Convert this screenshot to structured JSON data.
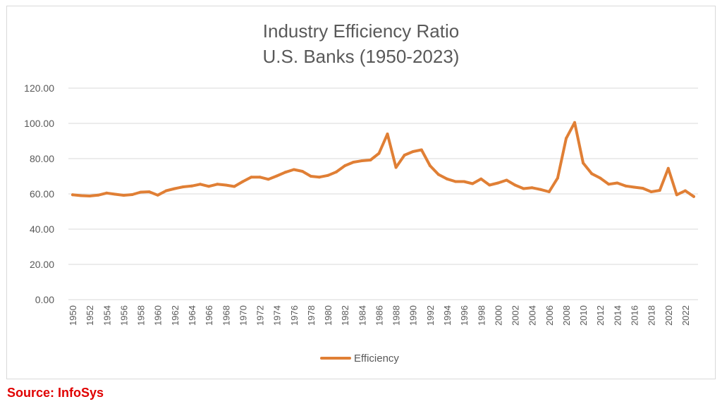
{
  "chart_data": {
    "type": "line",
    "title": "Industry Efficiency Ratio",
    "subtitle": "U.S. Banks (1950-2023)",
    "xlabel": "",
    "ylabel": "",
    "ylim": [
      0,
      120
    ],
    "y_ticks": [
      "0.00",
      "20.00",
      "40.00",
      "60.00",
      "80.00",
      "100.00",
      "120.00"
    ],
    "x_tick_labels": [
      "1950",
      "1952",
      "1954",
      "1956",
      "1958",
      "1960",
      "1962",
      "1964",
      "1966",
      "1968",
      "1970",
      "1972",
      "1974",
      "1976",
      "1978",
      "1980",
      "1982",
      "1984",
      "1986",
      "1988",
      "1990",
      "1992",
      "1994",
      "1996",
      "1998",
      "2000",
      "2002",
      "2004",
      "2006",
      "2008",
      "2010",
      "2012",
      "2014",
      "2016",
      "2018",
      "2020",
      "2022"
    ],
    "grid": true,
    "legend_position": "bottom",
    "series": [
      {
        "name": "Efficiency",
        "color": "#e07f35",
        "x": [
          1950,
          1951,
          1952,
          1953,
          1954,
          1955,
          1956,
          1957,
          1958,
          1959,
          1960,
          1961,
          1962,
          1963,
          1964,
          1965,
          1966,
          1967,
          1968,
          1969,
          1970,
          1971,
          1972,
          1973,
          1974,
          1975,
          1976,
          1977,
          1978,
          1979,
          1980,
          1981,
          1982,
          1983,
          1984,
          1985,
          1986,
          1987,
          1988,
          1989,
          1990,
          1991,
          1992,
          1993,
          1994,
          1995,
          1996,
          1997,
          1998,
          1999,
          2000,
          2001,
          2002,
          2003,
          2004,
          2005,
          2006,
          2007,
          2008,
          2009,
          2010,
          2011,
          2012,
          2013,
          2014,
          2015,
          2016,
          2017,
          2018,
          2019,
          2020,
          2021,
          2022,
          2023
        ],
        "values": [
          59.5,
          59.0,
          58.8,
          59.3,
          60.5,
          59.8,
          59.2,
          59.6,
          61.0,
          61.2,
          59.3,
          61.8,
          63.0,
          64.0,
          64.5,
          65.5,
          64.3,
          65.5,
          65.0,
          64.2,
          67.0,
          69.5,
          69.5,
          68.3,
          70.2,
          72.3,
          73.8,
          72.8,
          70.0,
          69.5,
          70.5,
          72.5,
          76.0,
          78.0,
          78.8,
          79.2,
          83.0,
          94.0,
          75.0,
          82.0,
          84.0,
          85.0,
          76.0,
          71.0,
          68.5,
          67.0,
          67.0,
          65.8,
          68.5,
          65.0,
          66.2,
          67.8,
          65.0,
          63.0,
          63.5,
          62.5,
          61.2,
          69.0,
          91.5,
          100.5,
          77.5,
          71.5,
          69.0,
          65.5,
          66.2,
          64.5,
          63.8,
          63.2,
          61.2,
          62.0,
          74.5,
          59.5,
          61.8,
          58.5
        ]
      }
    ]
  },
  "source_label": "Source: InfoSys"
}
